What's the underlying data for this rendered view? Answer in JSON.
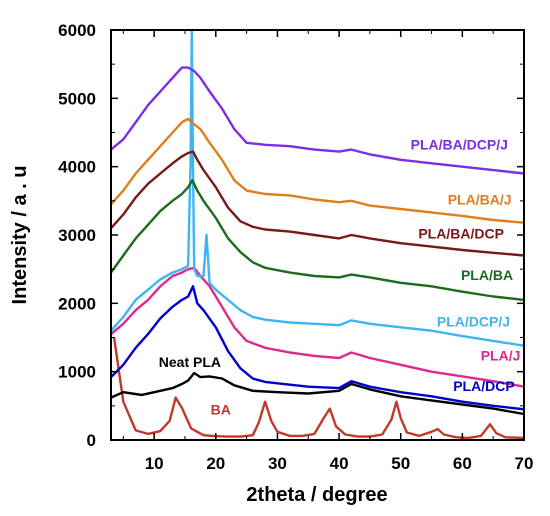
{
  "chart_data": {
    "type": "line",
    "xlabel": "2theta / degree",
    "ylabel": "Intensity / a . u",
    "xlim": [
      3,
      70
    ],
    "ylim": [
      0,
      6000
    ],
    "x_ticks": [
      10,
      20,
      30,
      40,
      50,
      60,
      70
    ],
    "y_ticks": [
      0,
      1000,
      2000,
      3000,
      4000,
      5000,
      6000
    ],
    "grid": false,
    "series": [
      {
        "name": "BA",
        "color": "#c0392b",
        "x": [
          3.5,
          5,
          7,
          9,
          11,
          12.5,
          13.5,
          14.5,
          16,
          18,
          20,
          22,
          24,
          26,
          27,
          28,
          29,
          30,
          32,
          34,
          36,
          37.5,
          38.5,
          39.5,
          41,
          43,
          45,
          47,
          48.5,
          49.3,
          50,
          51,
          53,
          55,
          56,
          57,
          59,
          61,
          63,
          64.5,
          65.5,
          67,
          70
        ],
        "values": [
          1500,
          560,
          140,
          90,
          130,
          280,
          620,
          470,
          170,
          70,
          55,
          50,
          50,
          70,
          260,
          560,
          280,
          120,
          60,
          60,
          90,
          320,
          460,
          200,
          80,
          50,
          50,
          80,
          300,
          560,
          320,
          110,
          60,
          120,
          160,
          80,
          40,
          30,
          60,
          230,
          100,
          40,
          30
        ]
      },
      {
        "name": "Neat PLA",
        "color": "#000000",
        "x": [
          3,
          5,
          8,
          11,
          13,
          14.5,
          15.5,
          16.5,
          17.5,
          19,
          21,
          23,
          26,
          30,
          35,
          40,
          42,
          45,
          50,
          55,
          60,
          65,
          70
        ],
        "values": [
          620,
          700,
          660,
          720,
          760,
          820,
          870,
          980,
          920,
          930,
          900,
          800,
          720,
          700,
          680,
          720,
          820,
          740,
          640,
          580,
          520,
          460,
          380
        ]
      },
      {
        "name": "PLA/DCP",
        "color": "#0000cc",
        "x": [
          3,
          5,
          7,
          9,
          11,
          13,
          14.5,
          15.5,
          16.3,
          17,
          18,
          20,
          22,
          24,
          26,
          28,
          30,
          35,
          40,
          42,
          45,
          50,
          55,
          60,
          65,
          70
        ],
        "values": [
          920,
          1100,
          1350,
          1550,
          1780,
          1950,
          2050,
          2100,
          2250,
          2000,
          1900,
          1650,
          1300,
          1050,
          900,
          850,
          830,
          780,
          760,
          860,
          780,
          700,
          640,
          560,
          500,
          450
        ]
      },
      {
        "name": "PLA/J",
        "color": "#dd2a8e",
        "x": [
          3,
          5,
          7,
          9,
          11,
          13,
          14.5,
          15.5,
          16.5,
          17.5,
          19,
          21,
          23,
          25,
          28,
          32,
          36,
          40,
          42,
          45,
          50,
          55,
          60,
          65,
          70
        ],
        "values": [
          1550,
          1700,
          1900,
          2050,
          2250,
          2400,
          2450,
          2500,
          2520,
          2400,
          2250,
          1950,
          1650,
          1450,
          1350,
          1280,
          1230,
          1200,
          1280,
          1200,
          1100,
          1000,
          930,
          860,
          780
        ]
      },
      {
        "name": "PLA/DCP/J",
        "color": "#3fb5f0",
        "x": [
          3,
          5,
          7,
          9,
          11,
          13,
          14.5,
          15.5,
          15.9,
          16.1,
          16.3,
          16.5,
          17,
          18,
          18.5,
          19,
          20,
          22,
          24,
          26,
          28,
          32,
          36,
          40,
          42,
          45,
          50,
          55,
          60,
          65,
          70
        ],
        "values": [
          1600,
          1800,
          2050,
          2200,
          2350,
          2450,
          2500,
          2550,
          4000,
          6000,
          4000,
          2500,
          2400,
          2400,
          3000,
          2300,
          2200,
          2050,
          1900,
          1800,
          1760,
          1720,
          1700,
          1680,
          1750,
          1700,
          1650,
          1600,
          1520,
          1450,
          1380
        ]
      },
      {
        "name": "PLA/BA",
        "color": "#1e6b1e",
        "x": [
          3,
          5,
          7,
          9,
          11,
          13,
          14.5,
          15.5,
          16.2,
          17,
          18,
          20,
          22,
          24,
          26,
          28,
          32,
          36,
          40,
          42,
          45,
          50,
          55,
          60,
          65,
          70
        ],
        "values": [
          2450,
          2700,
          2950,
          3150,
          3350,
          3500,
          3600,
          3700,
          3800,
          3650,
          3500,
          3250,
          2950,
          2750,
          2600,
          2520,
          2450,
          2400,
          2380,
          2420,
          2380,
          2300,
          2250,
          2170,
          2100,
          2050
        ]
      },
      {
        "name": "PLA/BA/DCP",
        "color": "#7a1717",
        "x": [
          3,
          5,
          7,
          9,
          11,
          13,
          14.5,
          15.5,
          16.3,
          17,
          18,
          20,
          22,
          24,
          26,
          28,
          32,
          36,
          40,
          42,
          45,
          50,
          55,
          60,
          65,
          70
        ],
        "values": [
          3100,
          3300,
          3550,
          3750,
          3900,
          4050,
          4150,
          4200,
          4220,
          4100,
          3950,
          3700,
          3400,
          3200,
          3120,
          3080,
          3050,
          3000,
          2950,
          3000,
          2950,
          2880,
          2830,
          2780,
          2740,
          2700
        ]
      },
      {
        "name": "PLA/BA/J",
        "color": "#e07e1b",
        "x": [
          3,
          5,
          7,
          9,
          11,
          13,
          14.5,
          15.5,
          16.5,
          17.5,
          19,
          21,
          23,
          25,
          28,
          32,
          36,
          40,
          42,
          45,
          50,
          55,
          60,
          65,
          70
        ],
        "values": [
          3450,
          3650,
          3900,
          4100,
          4300,
          4500,
          4650,
          4700,
          4620,
          4550,
          4350,
          4100,
          3800,
          3650,
          3600,
          3580,
          3520,
          3480,
          3500,
          3430,
          3380,
          3330,
          3280,
          3220,
          3180
        ]
      },
      {
        "name": "PLA/BA/DCP/J",
        "color": "#7b2ee6",
        "x": [
          3,
          5,
          7,
          9,
          11,
          13,
          14.5,
          15.5,
          16.5,
          17.5,
          19,
          21,
          23,
          25,
          28,
          32,
          36,
          40,
          42,
          45,
          50,
          55,
          60,
          65,
          70
        ],
        "values": [
          4250,
          4400,
          4650,
          4900,
          5100,
          5300,
          5450,
          5450,
          5400,
          5300,
          5100,
          4850,
          4550,
          4350,
          4320,
          4300,
          4250,
          4220,
          4250,
          4180,
          4100,
          4050,
          4000,
          3950,
          3900
        ]
      }
    ],
    "labels": [
      {
        "text": "PLA/BA/DCP/J",
        "x": 59.5,
        "y": 4250,
        "color": "#7b2ee6"
      },
      {
        "text": "PLA/BA/J",
        "x": 62.8,
        "y": 3450,
        "color": "#e07e1b"
      },
      {
        "text": "PLA/BA/DCP",
        "x": 59.8,
        "y": 2950,
        "color": "#7a1717"
      },
      {
        "text": "PLA/BA",
        "x": 64.0,
        "y": 2340,
        "color": "#1e6b1e"
      },
      {
        "text": "PLA/DCP/J",
        "x": 61.8,
        "y": 1660,
        "color": "#3fb5f0"
      },
      {
        "text": "PLA/J",
        "x": 66.2,
        "y": 1160,
        "color": "#dd2a8e"
      },
      {
        "text": "PLA/DCP",
        "x": 63.5,
        "y": 720,
        "color": "#0000cc"
      },
      {
        "text": "Neat PLA",
        "x": 15.8,
        "y": 1070,
        "color": "#000000"
      },
      {
        "text": "BA",
        "x": 20.8,
        "y": 370,
        "color": "#c0392b"
      }
    ]
  }
}
